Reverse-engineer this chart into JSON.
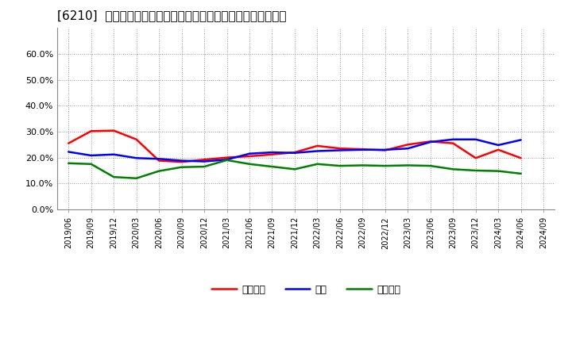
{
  "title": "[6210]  売上債権、在庫、買入債務の総資産に対する比率の推移",
  "x_labels": [
    "2019/06",
    "2019/09",
    "2019/12",
    "2020/03",
    "2020/06",
    "2020/09",
    "2020/12",
    "2021/03",
    "2021/06",
    "2021/09",
    "2021/12",
    "2022/03",
    "2022/06",
    "2022/09",
    "2022/12",
    "2023/03",
    "2023/06",
    "2023/09",
    "2023/12",
    "2024/03",
    "2024/06",
    "2024/09"
  ],
  "series": {
    "売上債権": [
      0.255,
      0.302,
      0.304,
      0.27,
      0.188,
      0.183,
      0.192,
      0.2,
      0.205,
      0.212,
      0.22,
      0.245,
      0.235,
      0.232,
      0.228,
      0.25,
      0.262,
      0.255,
      0.198,
      0.23,
      0.198,
      null
    ],
    "在庫": [
      0.222,
      0.208,
      0.212,
      0.198,
      0.195,
      0.188,
      0.185,
      0.192,
      0.215,
      0.22,
      0.218,
      0.225,
      0.228,
      0.23,
      0.23,
      0.235,
      0.26,
      0.27,
      0.27,
      0.248,
      0.268,
      null
    ],
    "買入債務": [
      0.178,
      0.175,
      0.125,
      0.12,
      0.148,
      0.163,
      0.165,
      0.19,
      0.175,
      0.165,
      0.155,
      0.175,
      0.168,
      0.17,
      0.168,
      0.17,
      0.168,
      0.155,
      0.15,
      0.148,
      0.138,
      null
    ]
  },
  "colors": {
    "売上債権": "#ff0000",
    "在庫": "#0000ff",
    "買入債務": "#008000"
  },
  "ylim": [
    0.0,
    0.7
  ],
  "yticks": [
    0.0,
    0.1,
    0.2,
    0.3,
    0.4,
    0.5,
    0.6
  ],
  "background_color": "#ffffff",
  "plot_bg_color": "#ffffff",
  "grid_color": "#999999",
  "title_fontsize": 11,
  "legend_labels": [
    "売上債権",
    "在庫",
    "買入債務"
  ],
  "line_width": 1.8
}
